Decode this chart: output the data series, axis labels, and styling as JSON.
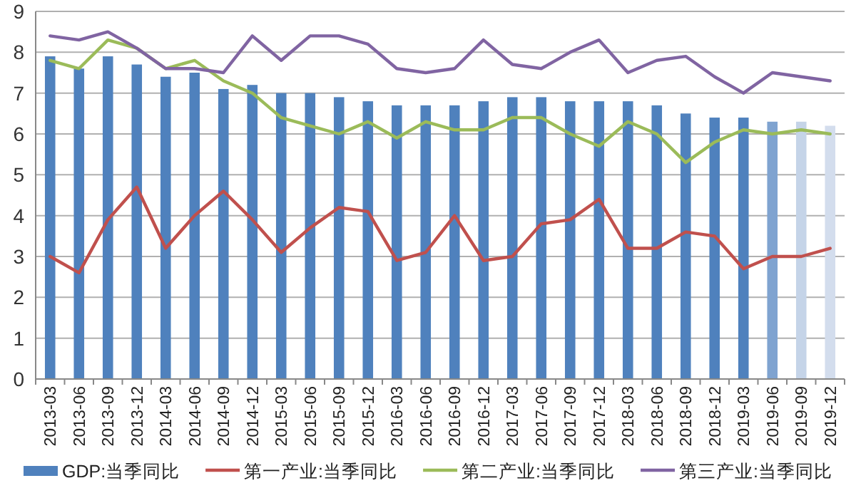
{
  "chart_data": {
    "type": "bar",
    "categories": [
      "2013-03",
      "2013-06",
      "2013-09",
      "2013-12",
      "2014-03",
      "2014-06",
      "2014-09",
      "2014-12",
      "2015-03",
      "2015-06",
      "2015-09",
      "2015-12",
      "2016-03",
      "2016-06",
      "2016-09",
      "2016-12",
      "2017-03",
      "2017-06",
      "2017-09",
      "2017-12",
      "2018-03",
      "2018-06",
      "2018-09",
      "2018-12",
      "2019-03",
      "2019-06",
      "2019-09",
      "2019-12"
    ],
    "series": [
      {
        "name": "GDP:当季同比",
        "type": "bar",
        "color": "#4f81bd",
        "colors": [
          "#4f81bd",
          "#4f81bd",
          "#4f81bd",
          "#4f81bd",
          "#4f81bd",
          "#4f81bd",
          "#4f81bd",
          "#4f81bd",
          "#4f81bd",
          "#4f81bd",
          "#4f81bd",
          "#4f81bd",
          "#4f81bd",
          "#4f81bd",
          "#4f81bd",
          "#4f81bd",
          "#4f81bd",
          "#4f81bd",
          "#4f81bd",
          "#4f81bd",
          "#4f81bd",
          "#4f81bd",
          "#4f81bd",
          "#4f81bd",
          "#4f81bd",
          "#7fa3d0",
          "#c5d4e8",
          "#d3dded"
        ],
        "values": [
          7.9,
          7.6,
          7.9,
          7.7,
          7.4,
          7.5,
          7.1,
          7.2,
          7.0,
          7.0,
          6.9,
          6.8,
          6.7,
          6.7,
          6.7,
          6.8,
          6.9,
          6.9,
          6.8,
          6.8,
          6.8,
          6.7,
          6.5,
          6.4,
          6.4,
          6.3,
          6.3,
          6.2
        ]
      },
      {
        "name": "第一产业:当季同比",
        "type": "line",
        "color": "#c0504d",
        "values": [
          3.0,
          2.6,
          3.9,
          4.7,
          3.2,
          4.0,
          4.6,
          3.9,
          3.1,
          3.7,
          4.2,
          4.1,
          2.9,
          3.1,
          4.0,
          2.9,
          3.0,
          3.8,
          3.9,
          4.4,
          3.2,
          3.2,
          3.6,
          3.5,
          2.7,
          3.0,
          3.0,
          3.2
        ]
      },
      {
        "name": "第二产业:当季同比",
        "type": "line",
        "color": "#9bbb59",
        "values": [
          7.8,
          7.6,
          8.3,
          8.1,
          7.6,
          7.8,
          7.3,
          7.0,
          6.4,
          6.2,
          6.0,
          6.3,
          5.9,
          6.3,
          6.1,
          6.1,
          6.4,
          6.4,
          6.0,
          5.7,
          6.3,
          6.0,
          5.3,
          5.8,
          6.1,
          6.0,
          6.1,
          6.0
        ]
      },
      {
        "name": "第三产业:当季同比",
        "type": "line",
        "color": "#8064a2",
        "values": [
          8.4,
          8.3,
          8.5,
          8.1,
          7.6,
          7.6,
          7.5,
          8.4,
          7.8,
          8.4,
          8.4,
          8.2,
          7.6,
          7.5,
          7.6,
          8.3,
          7.7,
          7.6,
          8.0,
          8.3,
          7.5,
          7.8,
          7.9,
          7.4,
          7.0,
          7.5,
          7.4,
          7.3
        ]
      }
    ],
    "ylim": [
      0,
      9
    ],
    "yticks": [
      0,
      1,
      2,
      3,
      4,
      5,
      6,
      7,
      8,
      9
    ],
    "grid": "y",
    "legend": "bottom"
  }
}
